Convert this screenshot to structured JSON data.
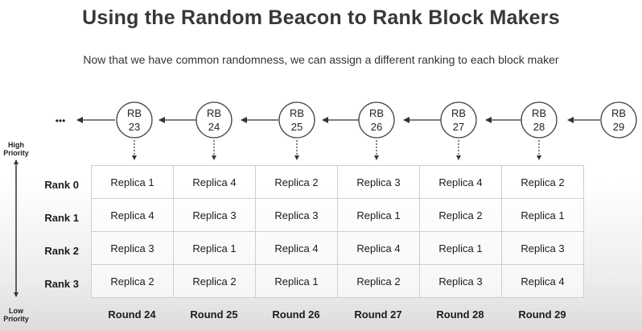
{
  "title": "Using the Random Beacon to Rank Block Makers",
  "subtitle": "Now that we have common randomness, we can assign a different ranking to each block maker",
  "ellipsis": "•••",
  "beacons": [
    {
      "label": "RB",
      "number": "23"
    },
    {
      "label": "RB",
      "number": "24"
    },
    {
      "label": "RB",
      "number": "25"
    },
    {
      "label": "RB",
      "number": "26"
    },
    {
      "label": "RB",
      "number": "27"
    },
    {
      "label": "RB",
      "number": "28"
    },
    {
      "label": "RB",
      "number": "29"
    }
  ],
  "priority": {
    "high_line1": "High",
    "high_line2": "Priority",
    "low_line1": "Low",
    "low_line2": "Priority"
  },
  "ranks": [
    "Rank 0",
    "Rank 1",
    "Rank 2",
    "Rank 3"
  ],
  "rounds": [
    "Round 24",
    "Round 25",
    "Round 26",
    "Round 27",
    "Round 28",
    "Round 29"
  ],
  "table": [
    [
      "Replica 1",
      "Replica 4",
      "Replica 2",
      "Replica 3",
      "Replica 4",
      "Replica 2"
    ],
    [
      "Replica 4",
      "Replica 3",
      "Replica 3",
      "Replica 1",
      "Replica 2",
      "Replica 1"
    ],
    [
      "Replica 3",
      "Replica 1",
      "Replica 4",
      "Replica 4",
      "Replica 1",
      "Replica 3"
    ],
    [
      "Replica 2",
      "Replica 2",
      "Replica 1",
      "Replica 2",
      "Replica 3",
      "Replica 4"
    ]
  ]
}
